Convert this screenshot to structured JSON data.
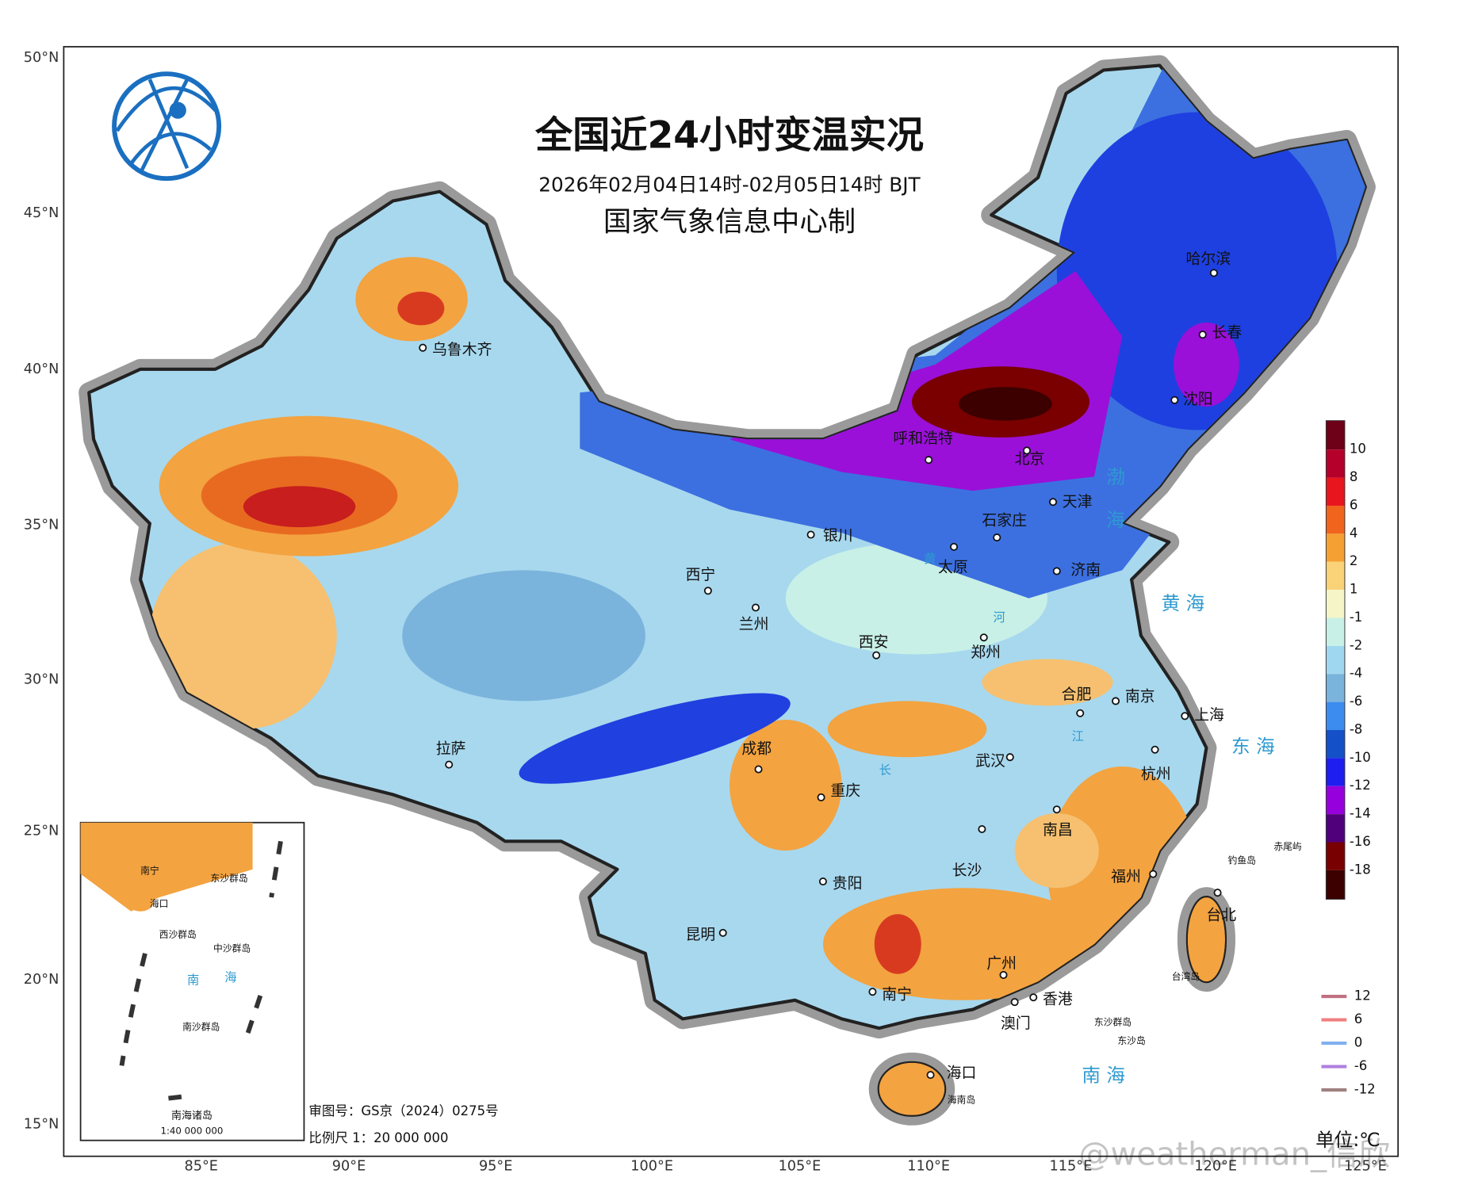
{
  "title": "全国近24小时变温实况",
  "subtitle": "2026年02月04日14时-02月05日14时 BJT",
  "producer": "国家气象信息中心制",
  "latitude_labels": [
    "50°N",
    "45°N",
    "40°N",
    "35°N",
    "30°N",
    "25°N",
    "20°N",
    "15°N"
  ],
  "longitude_labels": [
    "85°E",
    "90°E",
    "95°E",
    "100°E",
    "105°E",
    "110°E",
    "115°E",
    "120°E",
    "125°E"
  ],
  "cities": [
    "乌鲁木齐",
    "呼和浩特",
    "北京",
    "天津",
    "石家庄",
    "哈尔滨",
    "长春",
    "沈阳",
    "银川",
    "太原",
    "济南",
    "西宁",
    "兰州",
    "西安",
    "郑州",
    "合肥",
    "南京",
    "上海",
    "拉萨",
    "成都",
    "重庆",
    "武汉",
    "杭州",
    "长沙",
    "南昌",
    "贵阳",
    "福州",
    "昆明",
    "台北",
    "广州",
    "南宁",
    "香港",
    "澳门",
    "海口"
  ],
  "islands": [
    "海南岛",
    "台湾岛",
    "东沙群岛",
    "东沙岛",
    "钓鱼岛",
    "赤尾屿"
  ],
  "water_labels": [
    "渤",
    "海",
    "黄 海",
    "东 海",
    "南 海",
    "黄",
    "河",
    "长",
    "江"
  ],
  "inset": {
    "title": "南海诸岛",
    "scale": "1:40 000 000",
    "labels": [
      "南宁",
      "海口",
      "东沙群岛",
      "西沙群岛",
      "中沙群岛",
      "南沙群岛",
      "南",
      "海"
    ]
  },
  "approval": "审图号：GS京（2024）0275号",
  "scale": "比例尺 1：20 000 000",
  "color_legend": {
    "colors": [
      "#6e0018",
      "#b4002a",
      "#e8141e",
      "#f0641e",
      "#f5a032",
      "#fad278",
      "#f5f5c8",
      "#c8f0e6",
      "#a0d7f0",
      "#7ab4dc",
      "#3c8cf0",
      "#1450c8",
      "#1e1ef0",
      "#9600dc",
      "#50007a",
      "#780000",
      "#3c0000"
    ],
    "labels": [
      "10",
      "8",
      "6",
      "4",
      "2",
      "1",
      "-1",
      "-2",
      "-4",
      "-6",
      "-8",
      "-10",
      "-12",
      "-14",
      "-16",
      "-18"
    ]
  },
  "line_legend": [
    {
      "label": "12",
      "color": "#c07080"
    },
    {
      "label": "6",
      "color": "#f08080"
    },
    {
      "label": "0",
      "color": "#80b0f0"
    },
    {
      "label": "-6",
      "color": "#b080e0"
    },
    {
      "label": "-12",
      "color": "#a08080"
    }
  ],
  "unit": "单位:℃",
  "watermark": "@weatherman_信欣"
}
